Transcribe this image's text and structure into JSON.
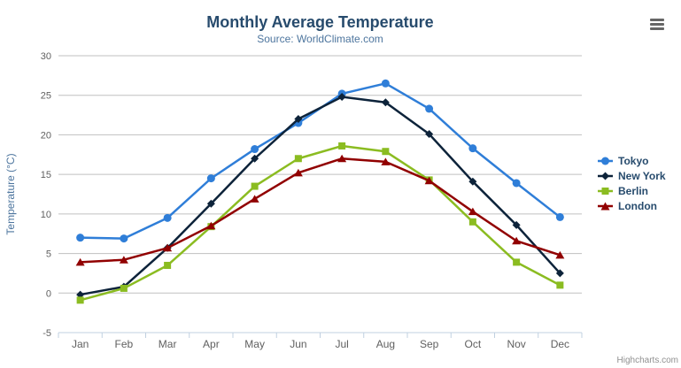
{
  "icons": {
    "context_menu": "hamburger-icon"
  },
  "footer": {
    "credits": "Highcharts.com"
  },
  "chart_data": {
    "type": "line",
    "title": "Monthly Average Temperature",
    "subtitle": "Source: WorldClimate.com",
    "xlabel": "",
    "ylabel": "Temperature (°C)",
    "ylim": [
      -5,
      30
    ],
    "yticks": [
      -5,
      0,
      5,
      10,
      15,
      20,
      25,
      30
    ],
    "grid": true,
    "legend_position": "right",
    "categories": [
      "Jan",
      "Feb",
      "Mar",
      "Apr",
      "May",
      "Jun",
      "Jul",
      "Aug",
      "Sep",
      "Oct",
      "Nov",
      "Dec"
    ],
    "series": [
      {
        "name": "Tokyo",
        "color": "#2f7ed8",
        "marker": "circle",
        "values": [
          7.0,
          6.9,
          9.5,
          14.5,
          18.2,
          21.5,
          25.2,
          26.5,
          23.3,
          18.3,
          13.9,
          9.6
        ]
      },
      {
        "name": "New York",
        "color": "#0d233a",
        "marker": "diamond",
        "values": [
          -0.2,
          0.8,
          5.7,
          11.3,
          17.0,
          22.0,
          24.8,
          24.1,
          20.1,
          14.1,
          8.6,
          2.5
        ]
      },
      {
        "name": "Berlin",
        "color": "#8bbc21",
        "marker": "square",
        "values": [
          -0.9,
          0.6,
          3.5,
          8.4,
          13.5,
          17.0,
          18.6,
          17.9,
          14.3,
          9.0,
          3.9,
          1.0
        ]
      },
      {
        "name": "London",
        "color": "#910000",
        "marker": "triangle",
        "values": [
          3.9,
          4.2,
          5.7,
          8.5,
          11.9,
          15.2,
          17.0,
          16.6,
          14.2,
          10.3,
          6.6,
          4.8
        ]
      }
    ],
    "axis_colors": {
      "grid": "#c0c0c0",
      "axis_line": "#c0d0e0",
      "labels": "#606060",
      "axis_title": "#4d759e"
    }
  }
}
